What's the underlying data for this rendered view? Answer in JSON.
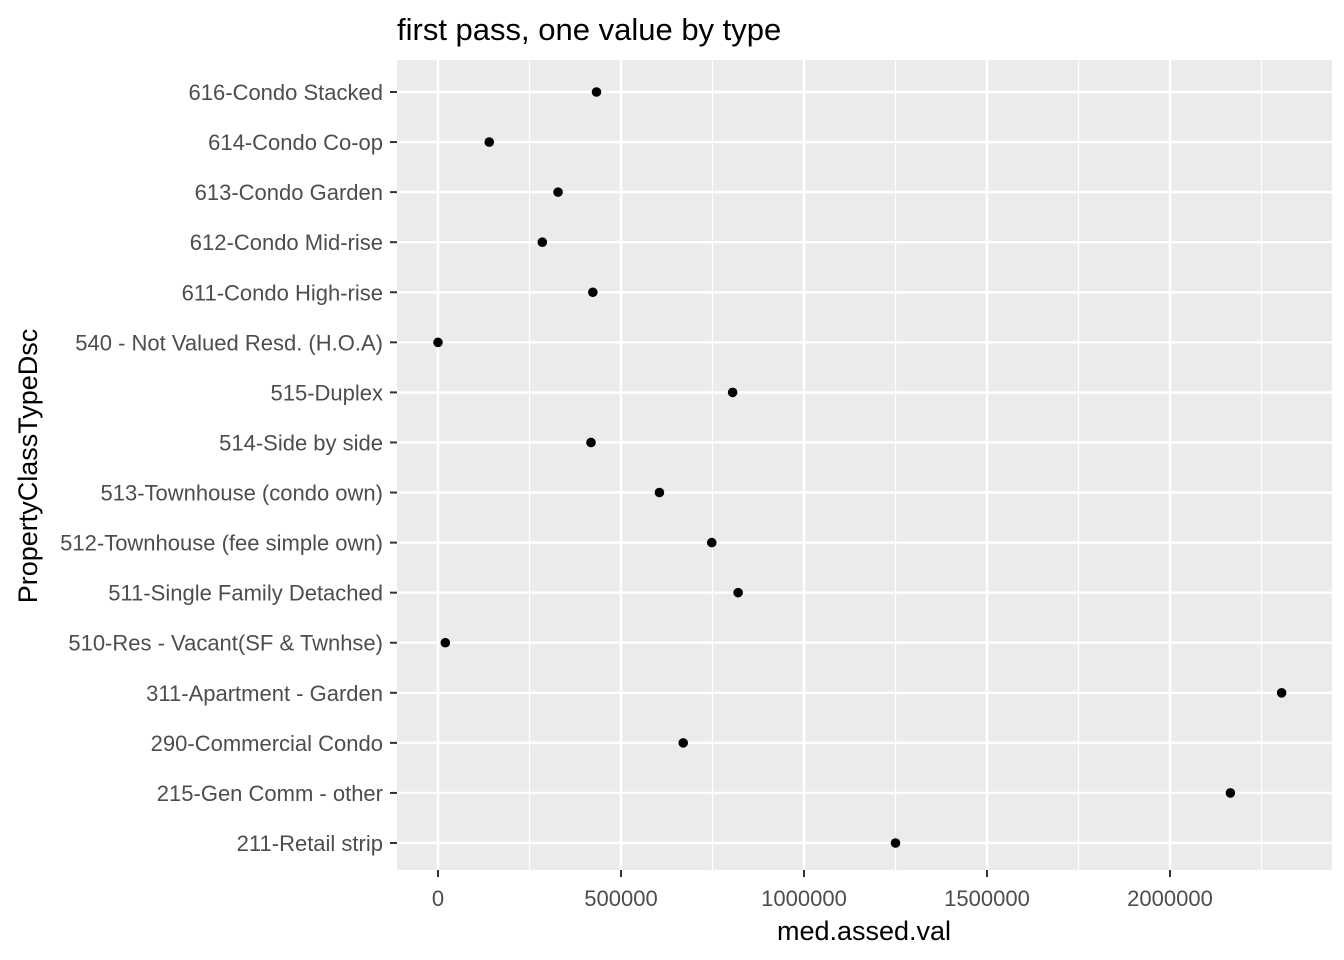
{
  "chart_data": {
    "type": "scatter",
    "title": "first pass, one value by type",
    "xlabel": "med.assed.val",
    "ylabel": "PropertyClassTypeDsc",
    "xlim": [
      -100000,
      2400000
    ],
    "x_ticks": [
      0,
      500000,
      1000000,
      1500000,
      2000000
    ],
    "x_tick_labels": [
      "0",
      "500000",
      "1000000",
      "1500000",
      "2000000"
    ],
    "grid": true,
    "legend": "none",
    "colors": {
      "panel": "#ebebeb",
      "grid": "#ffffff",
      "point": "#000000",
      "tick_text": "#4d4d4d",
      "tick_mark": "#333333"
    },
    "categories": [
      "211-Retail strip",
      "215-Gen Comm - other",
      "290-Commercial Condo",
      "311-Apartment - Garden",
      "510-Res - Vacant(SF & Twnhse)",
      "511-Single Family Detached",
      "512-Townhouse (fee simple own)",
      "513-Townhouse (condo own)",
      "514-Side by side",
      "515-Duplex",
      "540 - Not Valued Resd. (H.O.A)",
      "611-Condo High-rise",
      "612-Condo Mid-rise",
      "613-Condo Garden",
      "614-Condo Co-op",
      "616-Condo Stacked"
    ],
    "values": [
      1250000,
      2165000,
      670000,
      2305000,
      20000,
      820000,
      748000,
      605000,
      418000,
      805000,
      0,
      423000,
      285000,
      328000,
      140000,
      433000
    ]
  }
}
